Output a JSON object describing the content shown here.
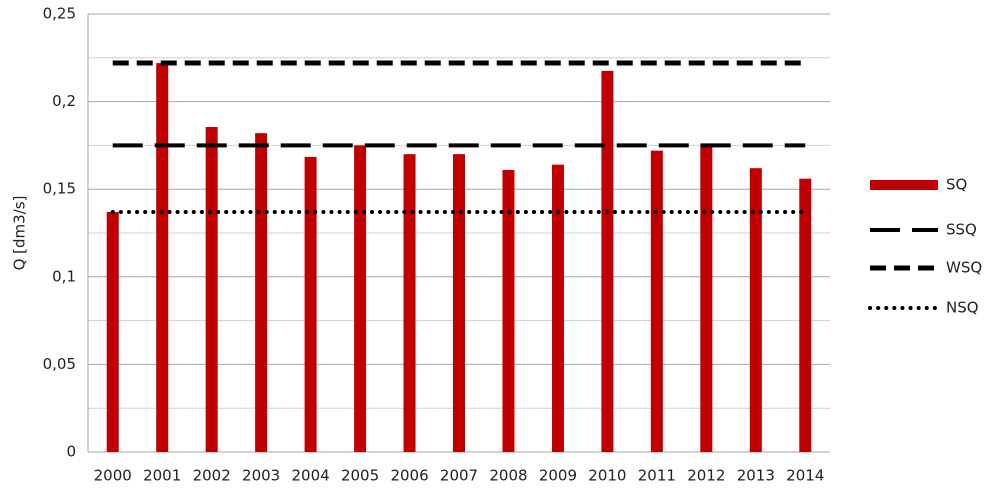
{
  "chart_data": {
    "type": "bar",
    "y_label": "Q [dm3/s]",
    "categories": [
      "2000",
      "2001",
      "2002",
      "2003",
      "2004",
      "2005",
      "2006",
      "2007",
      "2008",
      "2009",
      "2010",
      "2011",
      "2012",
      "2013",
      "2014"
    ],
    "series": [
      {
        "name": "SQ",
        "type": "bar",
        "color": "#c00000",
        "values": [
          0.137,
          0.222,
          0.1855,
          0.182,
          0.1684,
          0.175,
          0.17,
          0.17,
          0.161,
          0.164,
          0.2175,
          0.172,
          0.176,
          0.162,
          0.156
        ]
      },
      {
        "name": "SSQ",
        "type": "line",
        "dash": "long",
        "color": "#000000",
        "values": [
          0.175,
          0.175,
          0.175,
          0.175,
          0.175,
          0.175,
          0.175,
          0.175,
          0.175,
          0.175,
          0.175,
          0.175,
          0.175,
          0.175,
          0.175
        ]
      },
      {
        "name": "WSQ",
        "type": "line",
        "dash": "dashed",
        "color": "#000000",
        "values": [
          0.222,
          0.222,
          0.222,
          0.222,
          0.222,
          0.222,
          0.222,
          0.222,
          0.222,
          0.222,
          0.222,
          0.222,
          0.222,
          0.222,
          0.222
        ]
      },
      {
        "name": "NSQ",
        "type": "line",
        "dash": "dotted",
        "color": "#000000",
        "values": [
          0.137,
          0.137,
          0.137,
          0.137,
          0.137,
          0.137,
          0.137,
          0.137,
          0.137,
          0.137,
          0.137,
          0.137,
          0.137,
          0.137,
          0.137
        ]
      }
    ],
    "ylim": [
      0,
      0.25
    ],
    "yticks": [
      {
        "value": 0,
        "label": "0"
      },
      {
        "value": 0.05,
        "label": "0,05"
      },
      {
        "value": 0.1,
        "label": "0,1"
      },
      {
        "value": 0.15,
        "label": "0,15"
      },
      {
        "value": 0.2,
        "label": "0,2"
      },
      {
        "value": 0.25,
        "label": "0,25"
      }
    ],
    "minor_yticks": [
      0.025,
      0.075,
      0.125,
      0.175,
      0.225
    ],
    "grid": true,
    "legend": "right"
  }
}
